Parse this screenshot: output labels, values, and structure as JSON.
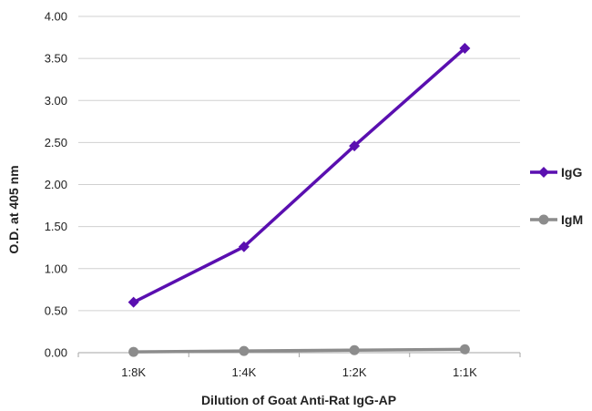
{
  "chart_data": {
    "type": "line",
    "title": "",
    "xlabel": "Dilution of Goat Anti-Rat IgG-AP",
    "ylabel": "O.D. at 405 nm",
    "categories": [
      "1:8K",
      "1:4K",
      "1:2K",
      "1:1K"
    ],
    "ylim": [
      0,
      4
    ],
    "yticks": [
      "0.00",
      "0.50",
      "1.00",
      "1.50",
      "2.00",
      "2.50",
      "3.00",
      "3.50",
      "4.00"
    ],
    "grid": true,
    "legend_position": "right",
    "series": [
      {
        "name": "IgG",
        "color": "#5a0fb0",
        "marker": "diamond",
        "values": [
          0.6,
          1.26,
          2.46,
          3.62
        ]
      },
      {
        "name": "IgM",
        "color": "#8c8c8c",
        "marker": "circle",
        "values": [
          0.01,
          0.02,
          0.03,
          0.04
        ]
      }
    ]
  }
}
